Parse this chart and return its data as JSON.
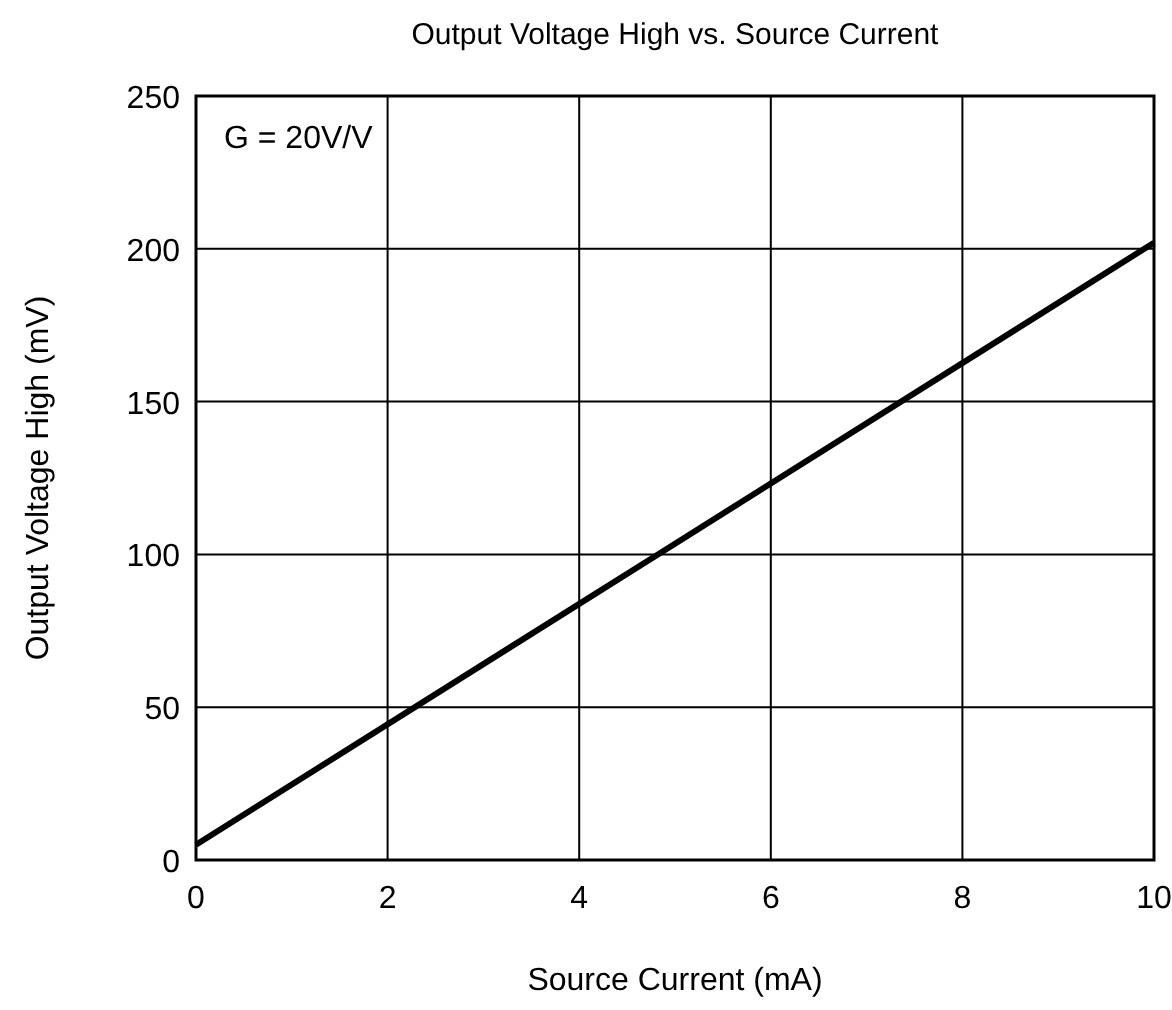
{
  "chart_data": {
    "type": "line",
    "title": "Output Voltage High vs. Source Current",
    "xlabel": "Source Current (mA)",
    "ylabel": "Output Voltage High (mV)",
    "annotations": [
      "G = 20V/V"
    ],
    "x": [
      0,
      5,
      10
    ],
    "series": [
      {
        "color": "#000000",
        "values": [
          5,
          103.5,
          202
        ]
      }
    ],
    "xlim": [
      0,
      10
    ],
    "xticks": [
      0,
      2,
      4,
      6,
      8,
      10
    ],
    "ylim": [
      0,
      250
    ],
    "yticks": [
      0,
      50,
      100,
      150,
      200,
      250
    ],
    "grid": true,
    "marker": "none",
    "line_style": "solid"
  }
}
